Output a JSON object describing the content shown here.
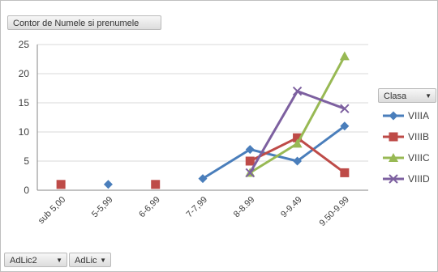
{
  "value_field_button": "Contor de Numele si prenumele",
  "legend_field": {
    "label": "Clasa",
    "dropdown_glyph": "▼"
  },
  "axis_field_buttons": [
    {
      "label": "AdLic2",
      "dropdown_glyph": "▼"
    },
    {
      "label": "AdLic",
      "dropdown_glyph": "▼"
    }
  ],
  "chart_data": {
    "type": "line",
    "categories": [
      "sub 5,00",
      "5-5,99",
      "6-6,99",
      "7-7,99",
      "8-8.99",
      "9-9.49",
      "9.50-9.99"
    ],
    "ylim": [
      0,
      25
    ],
    "yticks": [
      "0",
      "5",
      "10",
      "15",
      "20",
      "25"
    ],
    "grid": true,
    "legend_position": "right",
    "series": [
      {
        "name": "VIIIA",
        "color": "#4a7ebb",
        "marker": "diamond",
        "values": [
          null,
          1,
          null,
          2,
          7,
          5,
          11
        ]
      },
      {
        "name": "VIIIB",
        "color": "#be4b48",
        "marker": "square",
        "values": [
          1,
          null,
          1,
          null,
          5,
          9,
          3
        ]
      },
      {
        "name": "VIIIC",
        "color": "#98b954",
        "marker": "triangle",
        "values": [
          null,
          null,
          null,
          null,
          3,
          8,
          23
        ]
      },
      {
        "name": "VIIID",
        "color": "#7d60a0",
        "marker": "x",
        "values": [
          null,
          null,
          null,
          null,
          3,
          17,
          14
        ]
      }
    ]
  }
}
